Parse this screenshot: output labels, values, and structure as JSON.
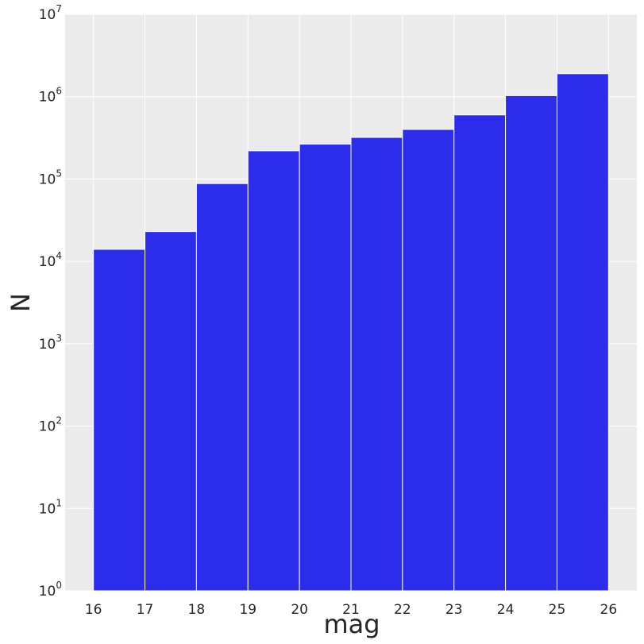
{
  "chart_data": {
    "type": "bar",
    "title": "",
    "xlabel": "mag",
    "ylabel": "N",
    "xlim": [
      15.45,
      26.55
    ],
    "ylim": [
      1,
      10000000
    ],
    "yscale": "log",
    "grid": true,
    "bin_edges": [
      16,
      17,
      18,
      19,
      20,
      21,
      22,
      23,
      24,
      25,
      26
    ],
    "values": [
      14000,
      23000,
      88000,
      220000,
      265000,
      320000,
      400000,
      600000,
      1030000,
      1900000
    ],
    "x_ticks": [
      "16",
      "17",
      "18",
      "19",
      "20",
      "21",
      "22",
      "23",
      "24",
      "25",
      "26"
    ],
    "y_ticks": [
      {
        "base": "10",
        "exp": "0"
      },
      {
        "base": "10",
        "exp": "1"
      },
      {
        "base": "10",
        "exp": "2"
      },
      {
        "base": "10",
        "exp": "3"
      },
      {
        "base": "10",
        "exp": "4"
      },
      {
        "base": "10",
        "exp": "5"
      },
      {
        "base": "10",
        "exp": "6"
      },
      {
        "base": "10",
        "exp": "7"
      }
    ],
    "colors": {
      "bar": "#2c2ced",
      "bar_edge": "#ffffff",
      "plot_bg": "#ebebeb",
      "grid": "#ffffff",
      "text": "#262626"
    }
  }
}
